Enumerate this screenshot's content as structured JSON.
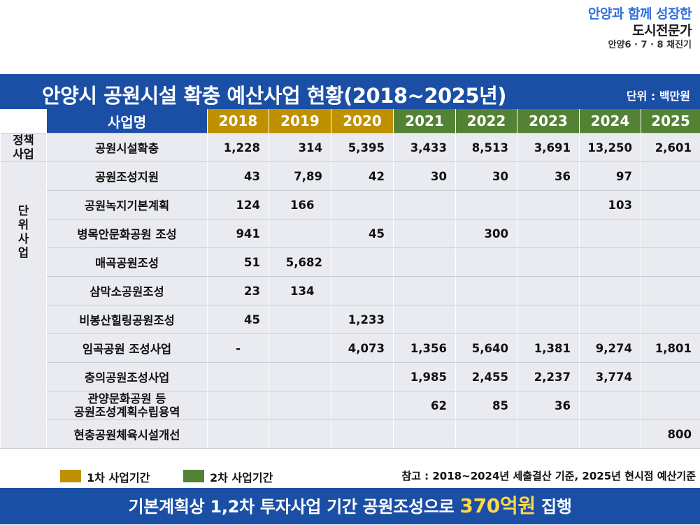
{
  "brand": {
    "line1": "안양과 함께 성장한",
    "line2": "도시전문가",
    "line3": "안양6 · 7 · 8 채진기"
  },
  "title": "안양시 공원시설 확충 예산사업 현황(2018~2025년)",
  "unit": "단위 : 백만원",
  "table": {
    "name_header": "사업명",
    "years": [
      "2018",
      "2019",
      "2020",
      "2021",
      "2022",
      "2023",
      "2024",
      "2025"
    ],
    "categories": {
      "policy": "정책\n사업",
      "unit": "단\n위\n사\n업"
    },
    "rows": [
      {
        "name": "공원시설확충",
        "values": [
          "1,228",
          "314",
          "5,395",
          "3,433",
          "8,513",
          "3,691",
          "13,250",
          "2,601"
        ]
      },
      {
        "name": "공원조성지원",
        "values": [
          "43",
          "7,89",
          "42",
          "30",
          "30",
          "36",
          "97",
          ""
        ]
      },
      {
        "name": "공원녹지기본계획",
        "values": [
          "124",
          "166",
          "",
          "",
          "",
          "",
          "103",
          ""
        ]
      },
      {
        "name": "병목안문화공원 조성",
        "values": [
          "941",
          "",
          "45",
          "",
          "300",
          "",
          "",
          ""
        ]
      },
      {
        "name": "매곡공원조성",
        "values": [
          "51",
          "5,682",
          "",
          "",
          "",
          "",
          "",
          ""
        ]
      },
      {
        "name": "삼막소공원조성",
        "values": [
          "23",
          "134",
          "",
          "",
          "",
          "",
          "",
          ""
        ]
      },
      {
        "name": "비봉산힐링공원조성",
        "values": [
          "45",
          "",
          "1,233",
          "",
          "",
          "",
          "",
          ""
        ]
      },
      {
        "name": "임곡공원 조성사업",
        "values": [
          "-",
          "",
          "4,073",
          "1,356",
          "5,640",
          "1,381",
          "9,274",
          "1,801"
        ]
      },
      {
        "name": "충의공원조성사업",
        "values": [
          "",
          "",
          "",
          "1,985",
          "2,455",
          "2,237",
          "3,774",
          ""
        ]
      },
      {
        "name_line1": "관양문화공원 등",
        "name_line2": "공원조성계획수립용역",
        "values": [
          "",
          "",
          "",
          "62",
          "85",
          "36",
          "",
          ""
        ]
      },
      {
        "name": "현충공원체육시설개선",
        "values": [
          "",
          "",
          "",
          "",
          "",
          "",
          "",
          "800"
        ]
      }
    ]
  },
  "legend": {
    "phase1": "1차 사업기간",
    "phase2": "2차 사업기간",
    "note": "참고 : 2018~2024년 세출결산 기준, 2025년 현시점 예산기준"
  },
  "bottom": {
    "prefix": "기본계획상 1,2차 투자사업 기간 공원조성으로 ",
    "highlight": "370억원",
    "suffix": " 집행"
  },
  "colors": {
    "primary_blue": "#1b4fa6",
    "phase1_gold": "#bf9000",
    "phase2_green": "#548235",
    "highlight_yellow": "#ffd84a"
  }
}
